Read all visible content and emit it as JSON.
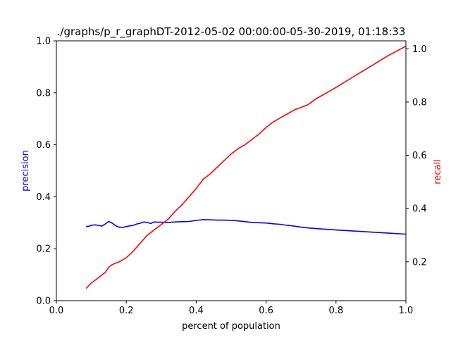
{
  "chart_data": {
    "type": "line",
    "title": "./graphs/p_r_graphDT-2012-05-02 00:00:00-05-30-2019, 01:18:33",
    "xlabel": "percent of population",
    "ylabel": "precision",
    "y2label": "recall",
    "xlim": [
      0,
      1
    ],
    "ylim": [
      0,
      1
    ],
    "y2lim": [
      0.054,
      1.03
    ],
    "x_ticks": [
      "0.0",
      "0.2",
      "0.4",
      "0.6",
      "0.8",
      "1.0"
    ],
    "y_ticks": [
      "0.0",
      "0.2",
      "0.4",
      "0.6",
      "0.8",
      "1.0"
    ],
    "y2_ticks": [
      "0.2",
      "0.4",
      "0.6",
      "0.8",
      "1.0"
    ],
    "grid": false,
    "series": [
      {
        "name": "precision",
        "axis": "left",
        "color": "#0000ff",
        "x": [
          0.085,
          0.095,
          0.1,
          0.11,
          0.12,
          0.13,
          0.14,
          0.15,
          0.16,
          0.17,
          0.18,
          0.19,
          0.2,
          0.21,
          0.22,
          0.23,
          0.24,
          0.25,
          0.26,
          0.27,
          0.28,
          0.29,
          0.3,
          0.32,
          0.34,
          0.36,
          0.38,
          0.4,
          0.42,
          0.44,
          0.46,
          0.48,
          0.5,
          0.52,
          0.54,
          0.56,
          0.58,
          0.6,
          0.62,
          0.64,
          0.66,
          0.68,
          0.7,
          0.72,
          0.74,
          0.76,
          0.8,
          0.85,
          0.9,
          0.95,
          1.0
        ],
        "y": [
          0.285,
          0.287,
          0.29,
          0.292,
          0.29,
          0.287,
          0.295,
          0.305,
          0.298,
          0.288,
          0.283,
          0.282,
          0.285,
          0.288,
          0.29,
          0.295,
          0.298,
          0.303,
          0.301,
          0.297,
          0.303,
          0.302,
          0.302,
          0.301,
          0.303,
          0.304,
          0.305,
          0.309,
          0.312,
          0.311,
          0.31,
          0.31,
          0.309,
          0.307,
          0.304,
          0.301,
          0.3,
          0.299,
          0.296,
          0.294,
          0.29,
          0.287,
          0.283,
          0.28,
          0.278,
          0.276,
          0.272,
          0.268,
          0.264,
          0.26,
          0.256
        ]
      },
      {
        "name": "recall",
        "axis": "right",
        "color": "#ff0000",
        "x": [
          0.085,
          0.1,
          0.12,
          0.14,
          0.15,
          0.16,
          0.18,
          0.2,
          0.22,
          0.24,
          0.26,
          0.28,
          0.3,
          0.32,
          0.34,
          0.36,
          0.38,
          0.4,
          0.42,
          0.44,
          0.46,
          0.48,
          0.5,
          0.52,
          0.54,
          0.56,
          0.58,
          0.6,
          0.62,
          0.64,
          0.66,
          0.68,
          0.7,
          0.72,
          0.74,
          0.76,
          0.8,
          0.85,
          0.9,
          0.95,
          1.0
        ],
        "y": [
          0.1,
          0.12,
          0.14,
          0.16,
          0.18,
          0.19,
          0.2,
          0.215,
          0.24,
          0.27,
          0.3,
          0.32,
          0.34,
          0.36,
          0.39,
          0.415,
          0.445,
          0.475,
          0.51,
          0.53,
          0.555,
          0.58,
          0.605,
          0.625,
          0.64,
          0.66,
          0.68,
          0.705,
          0.725,
          0.74,
          0.755,
          0.77,
          0.78,
          0.79,
          0.81,
          0.825,
          0.855,
          0.895,
          0.935,
          0.975,
          1.01
        ]
      }
    ]
  }
}
